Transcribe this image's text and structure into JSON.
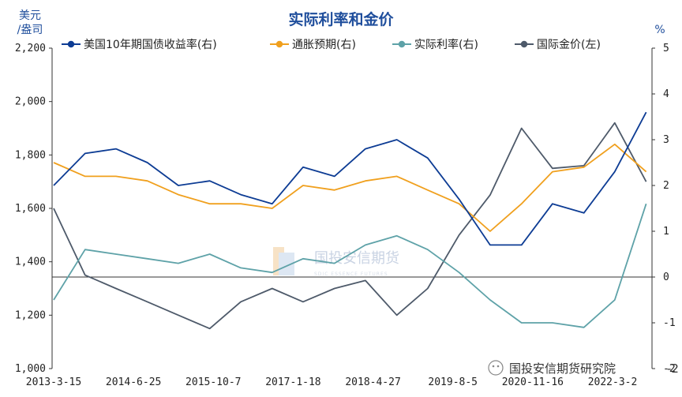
{
  "chart_data": {
    "type": "line",
    "title": "实际利率和金价",
    "left_unit": [
      "美元",
      "/盎司"
    ],
    "right_unit": "%",
    "x_ticks": [
      "2013-3-15",
      "2014-6-25",
      "2015-10-7",
      "2017-1-18",
      "2018-4-27",
      "2019-8-5",
      "2020-11-16",
      "2022-3-2"
    ],
    "ylim_left": [
      1000,
      2200
    ],
    "yticks_left": [
      "1,000",
      "1,200",
      "1,400",
      "1,600",
      "1,800",
      "2,000",
      "2,200"
    ],
    "ylim_right": [
      -2,
      5
    ],
    "yticks_right": [
      "-2",
      "-1",
      "0",
      "1",
      "2",
      "3",
      "4",
      "5"
    ],
    "x_dates": [
      "2013-03",
      "2013-09",
      "2014-03",
      "2014-09",
      "2015-03",
      "2015-09",
      "2016-03",
      "2016-09",
      "2017-03",
      "2017-09",
      "2018-03",
      "2018-09",
      "2019-03",
      "2019-09",
      "2020-03",
      "2020-09",
      "2021-03",
      "2021-09",
      "2022-03",
      "2022-09"
    ],
    "series": [
      {
        "name": "美国10年期国债收益率(右)",
        "axis": "right",
        "color": "#0d3c94",
        "values": [
          2.0,
          2.7,
          2.8,
          2.5,
          2.0,
          2.1,
          1.8,
          1.6,
          2.4,
          2.2,
          2.8,
          3.0,
          2.6,
          1.7,
          0.7,
          0.7,
          1.6,
          1.4,
          2.3,
          3.6
        ]
      },
      {
        "name": "通胀预期(右)",
        "axis": "right",
        "color": "#f0a01e",
        "values": [
          2.5,
          2.2,
          2.2,
          2.1,
          1.8,
          1.6,
          1.6,
          1.5,
          2.0,
          1.9,
          2.1,
          2.2,
          1.9,
          1.6,
          1.0,
          1.6,
          2.3,
          2.4,
          2.9,
          2.3
        ]
      },
      {
        "name": "实际利率(右)",
        "axis": "right",
        "color": "#5ea2a8",
        "values": [
          -0.5,
          0.6,
          0.5,
          0.4,
          0.3,
          0.5,
          0.2,
          0.1,
          0.4,
          0.3,
          0.7,
          0.9,
          0.6,
          0.1,
          -0.5,
          -1.0,
          -1.0,
          -1.1,
          -0.5,
          1.6
        ]
      },
      {
        "name": "国际金价(左)",
        "axis": "left",
        "color": "#4e5a6a",
        "values": [
          1600,
          1350,
          1300,
          1250,
          1200,
          1150,
          1250,
          1300,
          1250,
          1300,
          1330,
          1200,
          1300,
          1500,
          1650,
          1900,
          1750,
          1760,
          1920,
          1700
        ]
      }
    ],
    "grid": false,
    "legend_position": "top"
  },
  "watermark": {
    "text": "国投安信期货",
    "sub": "SDIC ESSENCE FUTURES"
  },
  "credit": "国投安信期货研究院"
}
